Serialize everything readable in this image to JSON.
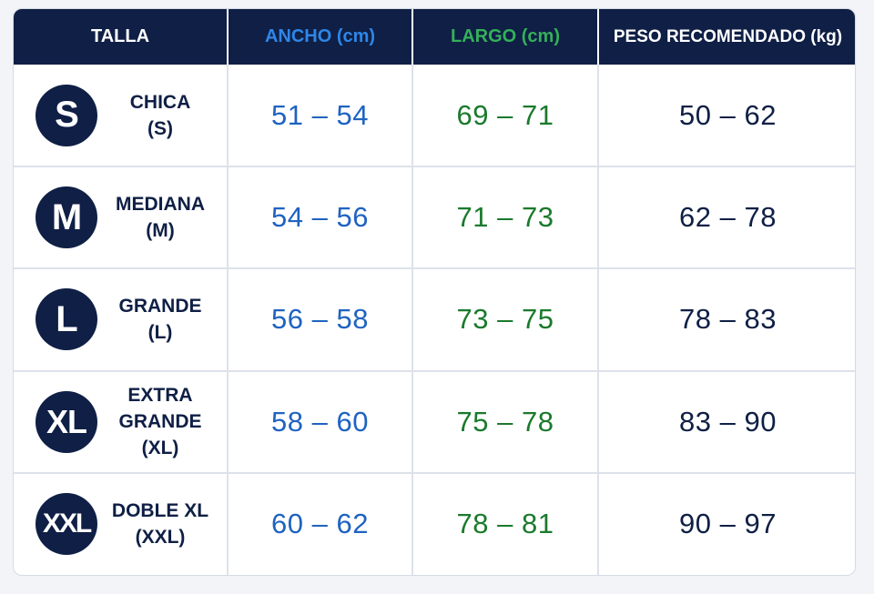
{
  "headers": {
    "talla": "TALLA",
    "ancho": "ANCHO (cm)",
    "largo": "LARGO (cm)",
    "peso": "PESO RECOMENDADO (kg)"
  },
  "colors": {
    "navy": "#0f1f45",
    "ancho_header": "#2f86e8",
    "largo_header": "#34b05a",
    "ancho_value": "#1f63c0",
    "largo_value": "#1a7a2c"
  },
  "rows": [
    {
      "badge": "S",
      "name": "CHICA\n(S)",
      "ancho": "51 – 54",
      "largo": "69 – 71",
      "peso": "50 – 62"
    },
    {
      "badge": "M",
      "name": "MEDIANA\n(M)",
      "ancho": "54 – 56",
      "largo": "71 – 73",
      "peso": "62 – 78"
    },
    {
      "badge": "L",
      "name": "GRANDE\n(L)",
      "ancho": "56 – 58",
      "largo": "73 – 75",
      "peso": "78 – 83"
    },
    {
      "badge": "XL",
      "name": "EXTRA\nGRANDE\n(XL)",
      "ancho": "58 – 60",
      "largo": "75 – 78",
      "peso": "83 – 90"
    },
    {
      "badge": "XXL",
      "name": "DOBLE XL\n(XXL)",
      "ancho": "60 – 62",
      "largo": "78 – 81",
      "peso": "90 – 97"
    }
  ]
}
